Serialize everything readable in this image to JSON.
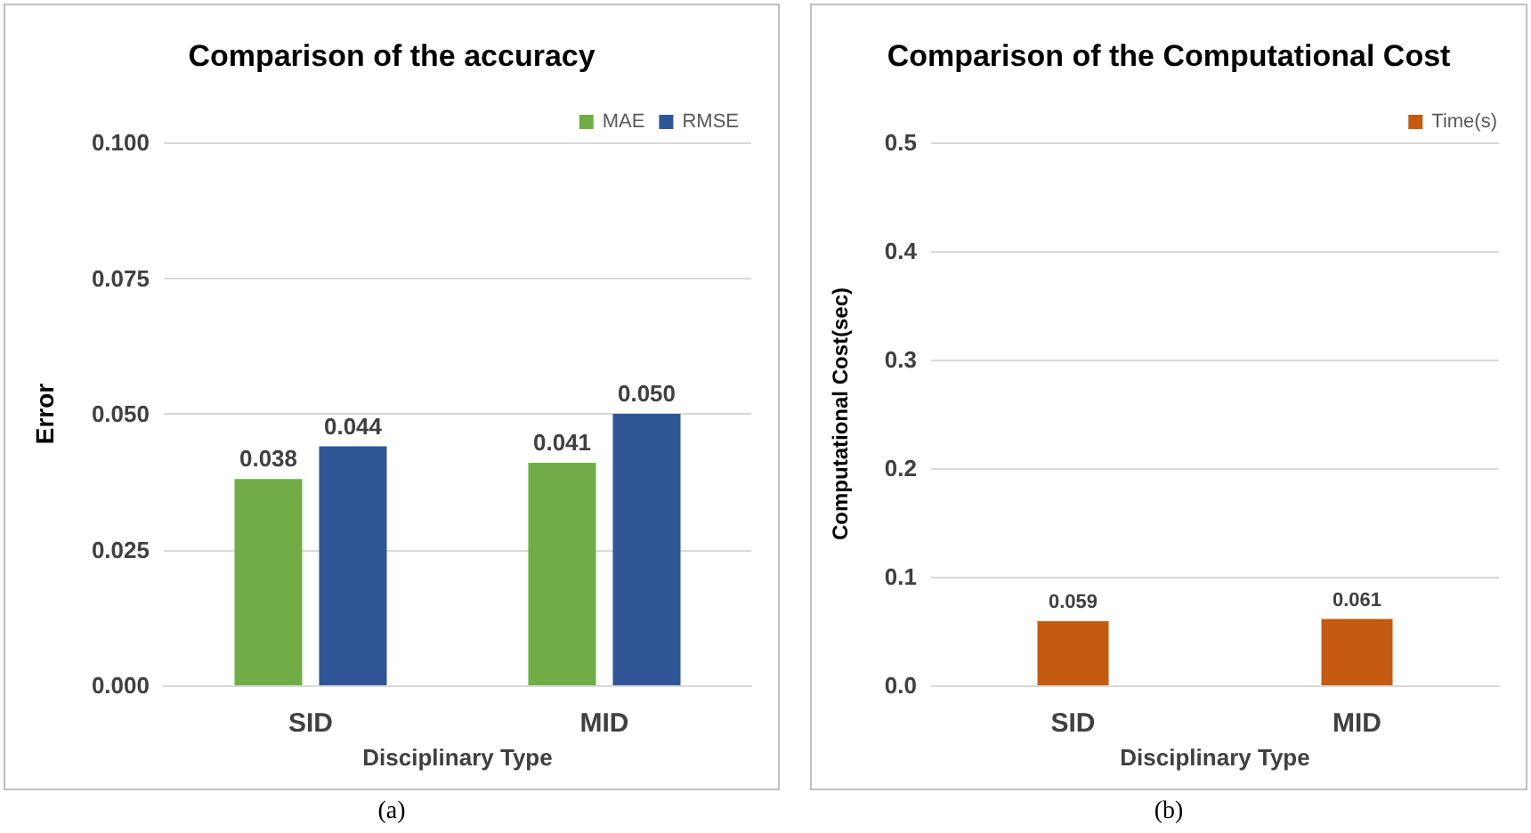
{
  "chart_data": [
    {
      "type": "bar",
      "title": "Comparison of the accuracy",
      "xlabel": "Disciplinary Type",
      "ylabel": "Error",
      "categories": [
        "SID",
        "MID"
      ],
      "series": [
        {
          "name": "MAE",
          "color": "#70ad47",
          "values": [
            0.038,
            0.041
          ],
          "value_labels": [
            "0.038",
            "0.041"
          ]
        },
        {
          "name": "RMSE",
          "color": "#2f5597",
          "values": [
            0.044,
            0.05
          ],
          "value_labels": [
            "0.044",
            "0.050"
          ]
        }
      ],
      "ylim": [
        0,
        0.1
      ],
      "yticks": [
        {
          "value": 0,
          "label": "0.000"
        },
        0.025,
        {
          "value": 0.05,
          "label": "0.050"
        },
        0.075,
        {
          "value": 0.1,
          "label": "0.100"
        }
      ],
      "grid": "y",
      "legend": "top right",
      "annotations": [
        "(a)"
      ]
    },
    {
      "type": "bar",
      "title": "Comparison of the Computational Cost",
      "xlabel": "Disciplinary Type",
      "ylabel": "Computational Cost(sec)",
      "categories": [
        "SID",
        "MID"
      ],
      "series": [
        {
          "name": "Time(s)",
          "color": "#c55a11",
          "values": [
            0.059,
            0.061
          ],
          "value_labels": [
            "0.059",
            "0.061"
          ]
        }
      ],
      "ylim": [
        0,
        0.5
      ],
      "yticks": [
        {
          "value": 0,
          "label": "0.0"
        },
        0.1,
        0.2,
        0.3,
        0.4,
        0.5
      ],
      "grid": "y",
      "legend": "top right",
      "annotations": [
        "(b)"
      ]
    }
  ]
}
